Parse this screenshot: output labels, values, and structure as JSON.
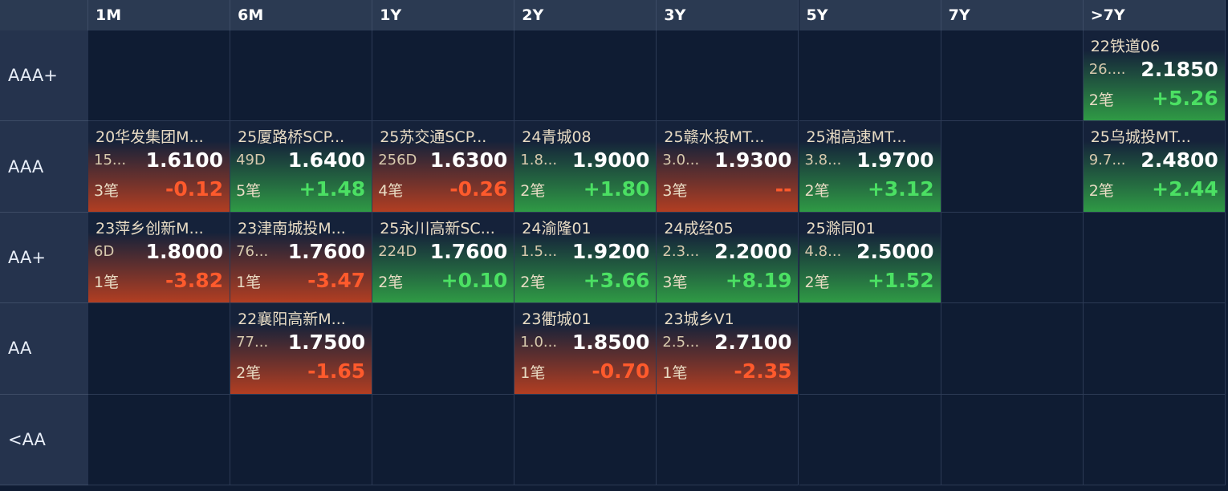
{
  "header": {
    "columns": [
      "1M",
      "6M",
      "1Y",
      "2Y",
      "3Y",
      "5Y",
      "7Y",
      ">7Y"
    ]
  },
  "rows": [
    {
      "label": "AAA+",
      "cells": [
        null,
        null,
        null,
        null,
        null,
        null,
        null,
        {
          "name": "22铁道06",
          "term": "26....",
          "price": "2.1850",
          "count": "2笔",
          "change": "+5.26"
        }
      ]
    },
    {
      "label": "AAA",
      "cells": [
        {
          "name": "20华发集团M...",
          "term": "15...",
          "price": "1.6100",
          "count": "3笔",
          "change": "-0.12"
        },
        {
          "name": "25厦路桥SCP...",
          "term": "49D",
          "price": "1.6400",
          "count": "5笔",
          "change": "+1.48"
        },
        {
          "name": "25苏交通SCP...",
          "term": "256D",
          "price": "1.6300",
          "count": "4笔",
          "change": "-0.26"
        },
        {
          "name": "24青城08",
          "term": "1.8...",
          "price": "1.9000",
          "count": "2笔",
          "change": "+1.80"
        },
        {
          "name": "25赣水投MT...",
          "term": "3.0...",
          "price": "1.9300",
          "count": "3笔",
          "change": "--"
        },
        {
          "name": "25湘高速MT...",
          "term": "3.8...",
          "price": "1.9700",
          "count": "2笔",
          "change": "+3.12"
        },
        null,
        {
          "name": "25乌城投MT...",
          "term": "9.7...",
          "price": "2.4800",
          "count": "2笔",
          "change": "+2.44"
        }
      ]
    },
    {
      "label": "AA+",
      "cells": [
        {
          "name": "23萍乡创新M...",
          "term": "6D",
          "price": "1.8000",
          "count": "1笔",
          "change": "-3.82"
        },
        {
          "name": "23津南城投M...",
          "term": "76...",
          "price": "1.7600",
          "count": "1笔",
          "change": "-3.47"
        },
        {
          "name": "25永川高新SC...",
          "term": "224D",
          "price": "1.7600",
          "count": "2笔",
          "change": "+0.10"
        },
        {
          "name": "24渝隆01",
          "term": "1.5...",
          "price": "1.9200",
          "count": "2笔",
          "change": "+3.66"
        },
        {
          "name": "24成经05",
          "term": "2.3...",
          "price": "2.2000",
          "count": "3笔",
          "change": "+8.19"
        },
        {
          "name": "25滁同01",
          "term": "4.8...",
          "price": "2.5000",
          "count": "2笔",
          "change": "+1.52"
        },
        null,
        null
      ]
    },
    {
      "label": "AA",
      "cells": [
        null,
        {
          "name": "22襄阳高新M...",
          "term": "77...",
          "price": "1.7500",
          "count": "2笔",
          "change": "-1.65"
        },
        null,
        {
          "name": "23衢城01",
          "term": "1.0...",
          "price": "1.8500",
          "count": "1笔",
          "change": "-0.70"
        },
        {
          "name": "23城乡V1",
          "term": "2.5...",
          "price": "2.7100",
          "count": "1笔",
          "change": "-2.35"
        },
        null,
        null,
        null
      ]
    },
    {
      "label": "<AA",
      "cells": [
        null,
        null,
        null,
        null,
        null,
        null,
        null,
        null
      ]
    }
  ]
}
